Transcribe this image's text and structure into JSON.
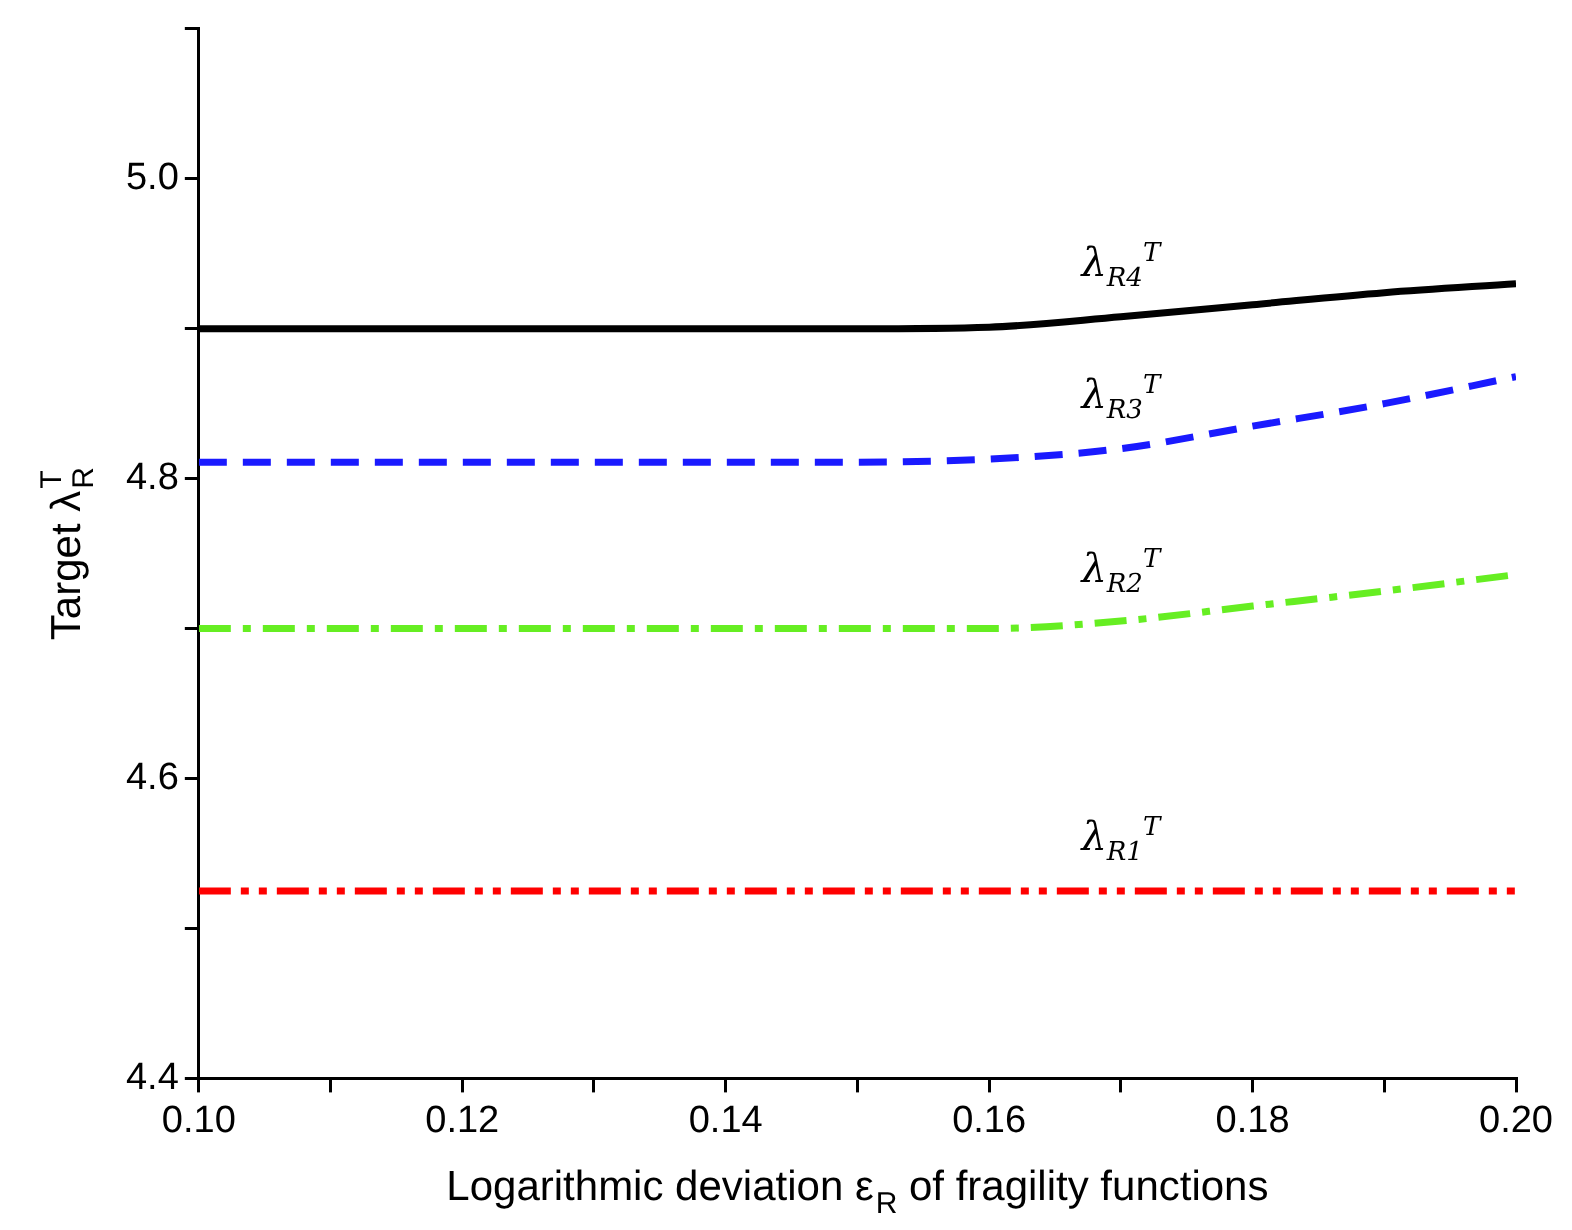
{
  "chart_data": {
    "type": "line",
    "xlabel": "Logarithmic deviation ε$_{R}$ of fragility functions",
    "ylabel": "Target λ$_{R}$$^{T}$",
    "x": [
      0.1,
      0.11,
      0.12,
      0.13,
      0.14,
      0.15,
      0.16,
      0.17,
      0.18,
      0.19,
      0.2
    ],
    "series": [
      {
        "name": "λ$_{R4}$$^{T}$",
        "color": "#000000",
        "line_style": "solid",
        "values": [
          4.9,
          4.9,
          4.9,
          4.9,
          4.9,
          4.9,
          4.901,
          4.908,
          4.916,
          4.924,
          4.93
        ]
      },
      {
        "name": "λ$_{R3}$$^{T}$",
        "color": "#1a1aff",
        "line_style": "dashed",
        "values": [
          4.811,
          4.811,
          4.811,
          4.811,
          4.811,
          4.811,
          4.813,
          4.82,
          4.835,
          4.85,
          4.868
        ]
      },
      {
        "name": "λ$_{R2}$$^{T}$",
        "color": "#66ee22",
        "line_style": "dashdot",
        "values": [
          4.7,
          4.7,
          4.7,
          4.7,
          4.7,
          4.7,
          4.7,
          4.705,
          4.715,
          4.725,
          4.736
        ]
      },
      {
        "name": "λ$_{R1}$$^{T}$",
        "color": "#ff0000",
        "line_style": "dashdotdot",
        "values": [
          4.525,
          4.525,
          4.525,
          4.525,
          4.525,
          4.525,
          4.525,
          4.525,
          4.525,
          4.525,
          4.525
        ]
      }
    ],
    "xlim": [
      0.1,
      0.2
    ],
    "ylim": [
      4.4,
      5.1
    ],
    "xticks": [
      {
        "value": 0.1,
        "label": "0.10"
      },
      {
        "value": 0.11,
        "label": null
      },
      0.12,
      {
        "value": 0.13,
        "label": null
      },
      0.14,
      {
        "value": 0.15,
        "label": null
      },
      0.16,
      {
        "value": 0.17,
        "label": null
      },
      0.18,
      {
        "value": 0.19,
        "label": null
      },
      {
        "value": 0.2,
        "label": "0.20"
      }
    ],
    "yticks": [
      4.4,
      {
        "value": 4.5,
        "label": null
      },
      4.6,
      {
        "value": 4.7,
        "label": null
      },
      4.8,
      {
        "value": 4.9,
        "label": null
      },
      {
        "value": 5.0,
        "label": "5.0"
      },
      {
        "value": 5.1,
        "label": null
      }
    ],
    "grid": false,
    "legend": false,
    "marker": "none"
  }
}
